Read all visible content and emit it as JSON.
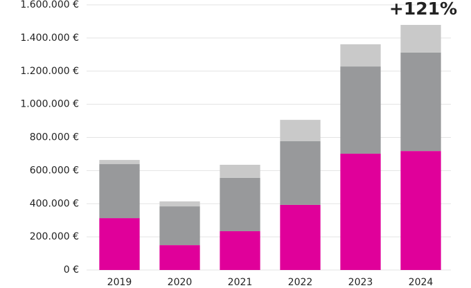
{
  "chart_data": {
    "type": "stacked_bar",
    "categories": [
      "2019",
      "2020",
      "2021",
      "2022",
      "2023",
      "2024"
    ],
    "series": [
      {
        "color": "#e0009a",
        "values": [
          313000,
          150000,
          234000,
          393000,
          702000,
          718000
        ]
      },
      {
        "color": "#98999b",
        "values": [
          326000,
          234000,
          322000,
          384000,
          526000,
          594000
        ]
      },
      {
        "color": "#c9c9c9",
        "values": [
          25000,
          30000,
          79000,
          129000,
          134000,
          167000
        ]
      }
    ],
    "ylim": [
      0,
      1600000
    ],
    "yticks": [
      {
        "value": 0,
        "label": "0 €"
      },
      {
        "value": 200000,
        "label": "200.000 €"
      },
      {
        "value": 400000,
        "label": "400.000 €"
      },
      {
        "value": 600000,
        "label": "600.000 €"
      },
      {
        "value": 800000,
        "label": "800.000 €"
      },
      {
        "value": 1000000,
        "label": "1.000.000 €"
      },
      {
        "value": 1200000,
        "label": "1.200.000 €"
      },
      {
        "value": 1400000,
        "label": "1.400.000 €"
      },
      {
        "value": 1600000,
        "label": "1.600.000 €"
      }
    ],
    "grid": true,
    "annotation": "+121%"
  }
}
